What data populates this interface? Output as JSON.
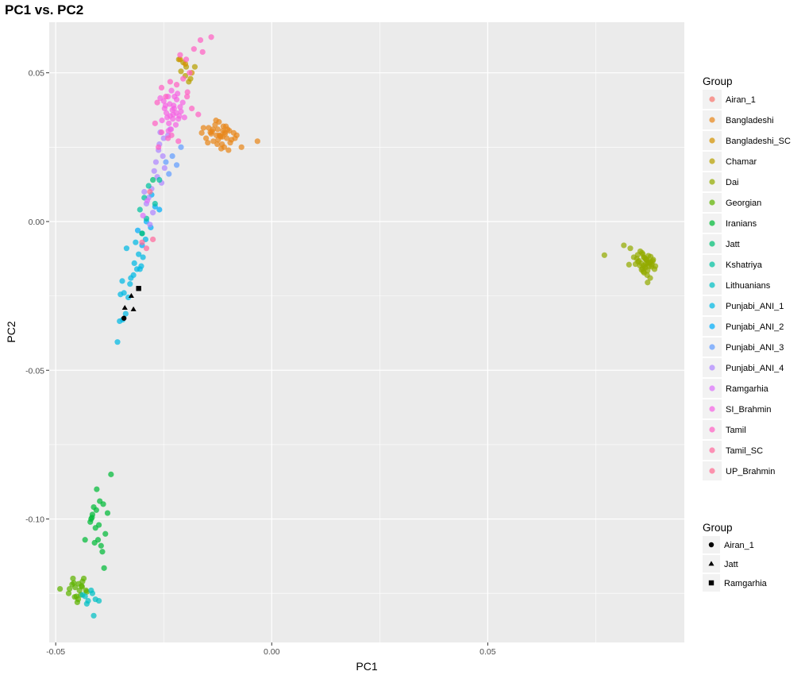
{
  "chart_data": {
    "type": "scatter",
    "title": "PC1 vs. PC2",
    "xlabel": "PC1",
    "ylabel": "PC2",
    "xlim": [
      -0.0515,
      0.0955
    ],
    "ylim": [
      -0.1415,
      0.067
    ],
    "x_ticks": [
      -0.05,
      0.0,
      0.05
    ],
    "x_tick_labels": [
      "-0.05",
      "0.00",
      "0.05"
    ],
    "y_ticks": [
      0.05,
      0.0,
      -0.05,
      -0.1
    ],
    "y_tick_labels": [
      "0.05",
      "0.00",
      "-0.05",
      "-0.10"
    ],
    "grid": true,
    "legend_position": "right",
    "color_legend": {
      "title": "Group",
      "entries": [
        {
          "name": "Airan_1",
          "color": "#F8766D"
        },
        {
          "name": "Bangladeshi",
          "color": "#E7861B"
        },
        {
          "name": "Bangladeshi_SC",
          "color": "#D39200"
        },
        {
          "name": "Chamar",
          "color": "#B79F00"
        },
        {
          "name": "Dai",
          "color": "#93AA00"
        },
        {
          "name": "Georgian",
          "color": "#5EB300"
        },
        {
          "name": "Iranians",
          "color": "#00BA38"
        },
        {
          "name": "Jatt",
          "color": "#00BF74"
        },
        {
          "name": "Kshatriya",
          "color": "#00C19F"
        },
        {
          "name": "Lithuanians",
          "color": "#00BFC4"
        },
        {
          "name": "Punjabi_ANI_1",
          "color": "#00B9E3"
        },
        {
          "name": "Punjabi_ANI_2",
          "color": "#00ADFA"
        },
        {
          "name": "Punjabi_ANI_3",
          "color": "#619CFF"
        },
        {
          "name": "Punjabi_ANI_4",
          "color": "#AE87FF"
        },
        {
          "name": "Ramgarhia",
          "color": "#DB72FB"
        },
        {
          "name": "SI_Brahmin",
          "color": "#F564E3"
        },
        {
          "name": "Tamil",
          "color": "#FF61C3"
        },
        {
          "name": "Tamil_SC",
          "color": "#FF699C"
        },
        {
          "name": "UP_Brahmin",
          "color": "#FF6C91"
        }
      ]
    },
    "shape_legend": {
      "title": "Group",
      "entries": [
        {
          "name": "Airan_1",
          "shape": "circle"
        },
        {
          "name": "Jatt",
          "shape": "triangle"
        },
        {
          "name": "Ramgarhia",
          "shape": "square"
        }
      ]
    },
    "series": [
      {
        "name": "Bangladeshi",
        "color": "#E7861B",
        "x": [
          -0.0142,
          -0.0125,
          -0.0118,
          -0.0108,
          -0.0135,
          -0.0112,
          -0.0098,
          -0.0128,
          -0.0146,
          -0.0115,
          -0.0104,
          -0.0088,
          -0.0122,
          -0.0138,
          -0.011,
          -0.0093,
          -0.0131,
          -0.0119,
          -0.0102,
          -0.0081,
          -0.0152,
          -0.0126,
          -0.0113,
          -0.0096,
          -0.014,
          -0.0117,
          -0.0106,
          -0.0129,
          -0.007,
          -0.0033,
          -0.0158,
          -0.0148,
          -0.01,
          -0.0121,
          -0.0136,
          -0.0109,
          -0.0085,
          -0.0162,
          -0.0114,
          -0.0124
        ],
        "y": [
          0.03,
          0.031,
          0.0285,
          0.0295,
          0.027,
          0.032,
          0.0305,
          0.029,
          0.0315,
          0.026,
          0.028,
          0.0298,
          0.0335,
          0.0302,
          0.025,
          0.0275,
          0.0325,
          0.0288,
          0.031,
          0.029,
          0.028,
          0.026,
          0.0305,
          0.0265,
          0.0295,
          0.0245,
          0.032,
          0.034,
          0.025,
          0.027,
          0.0315,
          0.0265,
          0.024,
          0.029,
          0.031,
          0.03,
          0.028,
          0.0298,
          0.0285,
          0.0275
        ]
      },
      {
        "name": "Dai",
        "color": "#93AA00",
        "x": [
          0.0855,
          0.0868,
          0.0874,
          0.0861,
          0.088,
          0.0848,
          0.087,
          0.0859,
          0.0883,
          0.0865,
          0.0852,
          0.0877,
          0.0862,
          0.0871,
          0.0845,
          0.0886,
          0.0857,
          0.0866,
          0.0879,
          0.085,
          0.0869,
          0.0863,
          0.0875,
          0.0858,
          0.0872,
          0.0842,
          0.086,
          0.0867,
          0.0876,
          0.0853,
          0.0838,
          0.083,
          0.077,
          0.0815,
          0.0827,
          0.087,
          0.0864,
          0.0882,
          0.0888,
          0.0856,
          0.0873,
          0.0847,
          0.0865,
          0.0861,
          0.0878
        ],
        "y": [
          -0.014,
          -0.013,
          -0.015,
          -0.012,
          -0.0145,
          -0.0135,
          -0.0165,
          -0.011,
          -0.0128,
          -0.0155,
          -0.0148,
          -0.0118,
          -0.0172,
          -0.0138,
          -0.0125,
          -0.016,
          -0.0105,
          -0.0142,
          -0.0152,
          -0.0132,
          -0.018,
          -0.0122,
          -0.0136,
          -0.0158,
          -0.0115,
          -0.0143,
          -0.0168,
          -0.0127,
          -0.019,
          -0.01,
          -0.012,
          -0.009,
          -0.0113,
          -0.008,
          -0.0145,
          -0.0205,
          -0.0152,
          -0.0133,
          -0.015,
          -0.0162,
          -0.014,
          -0.0112,
          -0.0126,
          -0.0148,
          -0.0137
        ]
      },
      {
        "name": "Iranians",
        "color": "#00BA38",
        "x": [
          -0.0372,
          -0.0405,
          -0.0412,
          -0.0398,
          -0.038,
          -0.0418,
          -0.0408,
          -0.039,
          -0.0415,
          -0.04,
          -0.0385,
          -0.0402,
          -0.041,
          -0.0432,
          -0.0395,
          -0.0388,
          -0.042,
          -0.0392,
          -0.0406,
          -0.0416
        ],
        "y": [
          -0.085,
          -0.09,
          -0.096,
          -0.094,
          -0.098,
          -0.1,
          -0.103,
          -0.095,
          -0.0985,
          -0.102,
          -0.105,
          -0.107,
          -0.108,
          -0.107,
          -0.109,
          -0.1165,
          -0.101,
          -0.111,
          -0.097,
          -0.0995
        ]
      },
      {
        "name": "Georgian",
        "color": "#5EB300",
        "x": [
          -0.0455,
          -0.0445,
          -0.0462,
          -0.047,
          -0.0438,
          -0.0452,
          -0.044,
          -0.046,
          -0.0448,
          -0.043,
          -0.0458,
          -0.0442,
          -0.0468,
          -0.0435,
          -0.045,
          -0.049,
          -0.0428,
          -0.0447,
          -0.0456,
          -0.0439
        ],
        "y": [
          -0.123,
          -0.124,
          -0.122,
          -0.125,
          -0.121,
          -0.126,
          -0.1225,
          -0.12,
          -0.127,
          -0.124,
          -0.1215,
          -0.1255,
          -0.1235,
          -0.12,
          -0.128,
          -0.1235,
          -0.1245,
          -0.1218,
          -0.1262,
          -0.1228
        ]
      },
      {
        "name": "Lithuanians",
        "color": "#00BFC4",
        "x": [
          -0.0432,
          -0.0425,
          -0.0418,
          -0.0408,
          -0.04,
          -0.0412,
          -0.0438,
          -0.0428,
          -0.0415
        ],
        "y": [
          -0.126,
          -0.1275,
          -0.124,
          -0.127,
          -0.1275,
          -0.1325,
          -0.1255,
          -0.1285,
          -0.125
        ]
      },
      {
        "name": "Punjabi_ANI_1",
        "color": "#00B9E3",
        "x": [
          -0.0357,
          -0.0352,
          -0.0345,
          -0.0338,
          -0.035,
          -0.0342,
          -0.0332,
          -0.0346,
          -0.0328,
          -0.032,
          -0.0312,
          -0.0302,
          -0.0318,
          -0.0298,
          -0.0308,
          -0.0315,
          -0.03,
          -0.0336,
          -0.0292,
          -0.0305,
          -0.0326
        ],
        "y": [
          -0.0405,
          -0.0335,
          -0.033,
          -0.031,
          -0.0245,
          -0.024,
          -0.0255,
          -0.02,
          -0.021,
          -0.018,
          -0.016,
          -0.015,
          -0.014,
          -0.012,
          -0.011,
          -0.007,
          -0.004,
          -0.009,
          -0.006,
          -0.016,
          -0.019
        ]
      },
      {
        "name": "Punjabi_ANI_2",
        "color": "#00ADFA",
        "x": [
          -0.029,
          -0.028,
          -0.031,
          -0.027,
          -0.026,
          -0.0278,
          -0.03
        ],
        "y": [
          0.0,
          -0.002,
          -0.003,
          0.005,
          0.004,
          0.009,
          -0.008
        ]
      },
      {
        "name": "Punjabi_ANI_3",
        "color": "#619CFF",
        "x": [
          -0.023,
          -0.022,
          -0.0238,
          -0.021,
          -0.0245
        ],
        "y": [
          0.022,
          0.019,
          0.016,
          0.025,
          0.02
        ]
      },
      {
        "name": "Punjabi_ANI_4",
        "color": "#AE87FF",
        "x": [
          -0.025,
          -0.0258,
          -0.0262,
          -0.024,
          -0.0252,
          -0.0268,
          -0.0235,
          -0.0265,
          -0.0248,
          -0.0272,
          -0.0255,
          -0.0278,
          -0.0285,
          -0.029,
          -0.0275,
          -0.0282,
          -0.026,
          -0.0295
        ],
        "y": [
          0.028,
          0.03,
          0.024,
          0.029,
          0.022,
          0.02,
          0.031,
          0.015,
          0.018,
          0.017,
          0.013,
          0.011,
          0.008,
          0.006,
          0.003,
          -0.001,
          0.026,
          0.01
        ]
      },
      {
        "name": "Kshatriya",
        "color": "#00C19F",
        "x": [
          -0.0285,
          -0.0295,
          -0.027,
          -0.0305,
          -0.029,
          -0.026
        ],
        "y": [
          0.012,
          0.008,
          0.006,
          0.004,
          0.001,
          0.014
        ]
      },
      {
        "name": "Jatt",
        "color": "#00BF74",
        "x": [
          -0.0275,
          -0.03
        ],
        "y": [
          0.014,
          -0.004
        ]
      },
      {
        "name": "Chamar",
        "color": "#B79F00",
        "x": [
          -0.0205,
          -0.0198,
          -0.021,
          -0.0192,
          -0.0215,
          -0.0178,
          -0.02,
          -0.0188
        ],
        "y": [
          0.0535,
          0.052,
          0.0505,
          0.047,
          0.0545,
          0.052,
          0.049,
          0.048
        ]
      },
      {
        "name": "Bangladeshi_SC",
        "color": "#D39200",
        "x": [
          -0.02,
          -0.0185,
          -0.0212
        ],
        "y": [
          0.053,
          0.05,
          0.0545
        ]
      },
      {
        "name": "SI_Brahmin",
        "color": "#F564E3",
        "x": [
          -0.0248,
          -0.0236,
          -0.0228,
          -0.022,
          -0.0242,
          -0.023,
          -0.0216,
          -0.0225,
          -0.025,
          -0.0238,
          -0.0212,
          -0.0232,
          -0.0244,
          -0.0222,
          -0.0206,
          -0.0235,
          -0.0227,
          -0.0218,
          -0.0254,
          -0.024,
          -0.021,
          -0.0229,
          -0.0246,
          -0.0233,
          -0.0214,
          -0.0226,
          -0.0239,
          -0.0221,
          -0.0258,
          -0.0202
        ],
        "y": [
          0.038,
          0.0395,
          0.036,
          0.041,
          0.035,
          0.0375,
          0.0345,
          0.042,
          0.0405,
          0.033,
          0.0385,
          0.044,
          0.0365,
          0.0325,
          0.04,
          0.0355,
          0.039,
          0.043,
          0.034,
          0.042,
          0.037,
          0.0345,
          0.039,
          0.031,
          0.0355,
          0.038,
          0.0305,
          0.0365,
          0.0415,
          0.035
        ]
      },
      {
        "name": "Tamil",
        "color": "#FF61C3",
        "x": [
          -0.0212,
          -0.0198,
          -0.019,
          -0.0205,
          -0.022,
          -0.0235,
          -0.0255,
          -0.0245,
          -0.0265,
          -0.027,
          -0.0255,
          -0.0232,
          -0.0216,
          -0.0196,
          -0.0185,
          -0.017,
          -0.016,
          -0.018,
          -0.0165,
          -0.014,
          -0.0195,
          -0.024,
          -0.0262
        ],
        "y": [
          0.056,
          0.0545,
          0.05,
          0.048,
          0.046,
          0.047,
          0.045,
          0.042,
          0.04,
          0.033,
          0.03,
          0.029,
          0.027,
          0.042,
          0.038,
          0.036,
          0.057,
          0.058,
          0.061,
          0.062,
          0.0435,
          0.028,
          0.025
        ]
      },
      {
        "name": "Tamil_SC",
        "color": "#FF699C",
        "x": [
          -0.03,
          -0.029,
          -0.0275
        ],
        "y": [
          -0.007,
          -0.009,
          -0.006
        ]
      },
      {
        "name": "UP_Brahmin",
        "color": "#FF6C91",
        "x": [
          -0.0282
        ],
        "y": [
          0.01
        ]
      },
      {
        "name": "Ramgarhia",
        "color": "#DB72FB",
        "x": [
          -0.0288,
          -0.0298
        ],
        "y": [
          0.007,
          0.002
        ]
      }
    ],
    "shape_series": [
      {
        "name": "Airan_1",
        "shape": "circle",
        "x": [
          -0.0342
        ],
        "y": [
          -0.0325
        ]
      },
      {
        "name": "Jatt",
        "shape": "triangle",
        "x": [
          -0.034,
          -0.0325,
          -0.032
        ],
        "y": [
          -0.029,
          -0.025,
          -0.0295
        ]
      },
      {
        "name": "Ramgarhia",
        "shape": "square",
        "x": [
          -0.0308
        ],
        "y": [
          -0.0225
        ]
      }
    ]
  }
}
